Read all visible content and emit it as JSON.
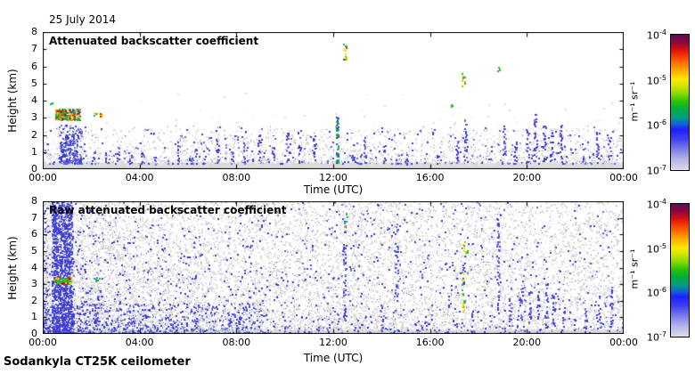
{
  "meta": {
    "date_label": "25 July 2014",
    "footer": "Sodankyla CT25K ceilometer"
  },
  "chart_data": [
    {
      "type": "scatter",
      "title": "Attenuated backscatter coefficient",
      "xlabel": "Time (UTC)",
      "ylabel": "Height (km)",
      "xlim_hours": [
        0,
        24
      ],
      "ylim_km": [
        0,
        8
      ],
      "grid": false,
      "xticks": {
        "positions": [
          0,
          4,
          8,
          12,
          16,
          20,
          24
        ],
        "labels": [
          "00:00",
          "04:00",
          "08:00",
          "12:00",
          "16:00",
          "20:00",
          "00:00"
        ]
      },
      "yticks": {
        "positions": [
          0,
          1,
          2,
          3,
          4,
          5,
          6,
          7,
          8
        ],
        "labels": [
          "0",
          "1",
          "2",
          "3",
          "4",
          "5",
          "6",
          "7",
          "8"
        ]
      },
      "colorbar": {
        "base": "10",
        "exponents": [
          "-4",
          "-5",
          "-6",
          "-7"
        ],
        "units": "m⁻¹ sr⁻¹",
        "min": "1e-7",
        "max": "1e-4",
        "scale": "log"
      },
      "features": [
        {
          "type": "surface_band",
          "label": "surface-return-band",
          "h_top": 0.45,
          "jitter": 0.3,
          "color": "#dcdcdc"
        },
        {
          "type": "speckle",
          "label": "weak-aerosol-gray",
          "t": [
            0,
            24
          ],
          "h": [
            0.3,
            2.35
          ],
          "count": 2400,
          "h_bias": 2.1,
          "t_bias": 1,
          "colors": [
            "#d8d8d8",
            "#d8d8d8",
            "#e3e3e3"
          ],
          "sizes": [
            1,
            2
          ]
        },
        {
          "type": "speckle",
          "label": "sparse-gray-high",
          "t": [
            0,
            24
          ],
          "h": [
            2.3,
            4.5
          ],
          "count": 120,
          "h_bias": 2.6,
          "t_bias": 1,
          "colors": [
            "#dedede"
          ],
          "sizes": [
            1,
            2
          ]
        },
        {
          "type": "speckle",
          "label": "aerosol-blue",
          "t": [
            0,
            24
          ],
          "h": [
            0.35,
            2.55
          ],
          "count": 620,
          "h_bias": 1.9,
          "t_bias": 1,
          "colors": [
            "#3a3ad6",
            "#3a3ad6",
            "#6b6be0"
          ],
          "sizes": [
            1,
            2
          ]
        },
        {
          "type": "speckle",
          "label": "aerosol-blue-early",
          "t": [
            0.65,
            1.6
          ],
          "h": [
            0.35,
            2.6
          ],
          "count": 240,
          "h_bias": 1.4,
          "t_bias": 1,
          "colors": [
            "#3a3ad6",
            "#6b6be0"
          ],
          "sizes": [
            1,
            2
          ]
        },
        {
          "type": "streaks",
          "label": "boundary-layer-aerosol-streaks",
          "density": 9,
          "width": 2,
          "colors": [
            "#3a3ad6",
            "#3a3ad6",
            "#6b6be0"
          ],
          "items": [
            [
              0.75,
              0.4,
              2.0
            ],
            [
              0.9,
              0.5,
              2.4
            ],
            [
              1.05,
              0.4,
              1.9
            ],
            [
              1.25,
              0.5,
              2.2
            ],
            [
              1.45,
              2.7,
              3.6
            ],
            [
              2.1,
              0.5,
              1.2
            ],
            [
              2.6,
              0.4,
              1.0
            ],
            [
              3.1,
              0.4,
              1.4
            ],
            [
              3.6,
              0.3,
              0.9
            ],
            [
              4.1,
              0.3,
              1.0
            ],
            [
              4.6,
              0.3,
              0.8
            ],
            [
              5.6,
              0.4,
              1.6
            ],
            [
              6.3,
              0.4,
              1.2
            ],
            [
              7.2,
              0.4,
              2.0
            ],
            [
              7.8,
              0.3,
              1.1
            ],
            [
              8.3,
              0.4,
              1.6
            ],
            [
              8.9,
              0.5,
              2.1
            ],
            [
              9.5,
              0.4,
              1.5
            ],
            [
              10.1,
              0.4,
              2.2
            ],
            [
              10.6,
              0.4,
              1.5
            ],
            [
              11.2,
              0.4,
              1.8
            ],
            [
              12.8,
              0.4,
              1.6
            ],
            [
              13.3,
              0.4,
              2.1
            ],
            [
              14.1,
              0.4,
              1.5
            ],
            [
              15.0,
              0.3,
              0.9
            ],
            [
              17.1,
              0.4,
              1.7
            ],
            [
              17.45,
              0.4,
              3.0
            ],
            [
              19.05,
              0.5,
              2.6
            ],
            [
              19.5,
              0.4,
              1.7
            ],
            [
              20.0,
              0.4,
              2.4
            ],
            [
              20.3,
              0.5,
              3.3
            ],
            [
              20.7,
              0.4,
              2.6
            ],
            [
              21.0,
              0.5,
              2.2
            ],
            [
              21.4,
              0.4,
              2.7
            ],
            [
              22.3,
              0.4,
              1.5
            ],
            [
              22.9,
              0.5,
              2.3
            ],
            [
              23.4,
              0.4,
              1.9
            ]
          ]
        },
        {
          "type": "cluster",
          "label": "cloud-layer-3km-0030-0130",
          "t": [
            0.5,
            1.5
          ],
          "h": [
            2.9,
            3.55
          ],
          "count": 220,
          "colors": [
            "#1fb832",
            "#1fb832",
            "#3a3ad6",
            "#f2d900",
            "#e81400",
            "#ff8c00",
            "#00a884"
          ],
          "sizes": [
            2,
            2
          ]
        },
        {
          "type": "cluster",
          "label": "cloud-red-core",
          "t": [
            0.6,
            0.95
          ],
          "h": [
            3.15,
            3.45
          ],
          "count": 55,
          "colors": [
            "#e81400",
            "#b00030",
            "#ff8c00",
            "#1fb832"
          ],
          "sizes": [
            2,
            2
          ]
        },
        {
          "type": "cluster",
          "label": "cloud-fragment-0210",
          "t": [
            2.1,
            2.45
          ],
          "h": [
            3.1,
            3.3
          ],
          "count": 12,
          "colors": [
            "#1fb832",
            "#e81400",
            "#f2d900"
          ],
          "sizes": [
            2,
            2
          ]
        },
        {
          "type": "cluster",
          "label": "green-dots-0020-39km",
          "t": [
            0.28,
            0.45
          ],
          "h": [
            3.75,
            3.95
          ],
          "count": 5,
          "colors": [
            "#1fb832",
            "#00a884"
          ],
          "sizes": [
            2,
            2
          ]
        },
        {
          "type": "streaks",
          "label": "precip-column-1210",
          "density": 18,
          "width": 2,
          "colors": [
            "#00a884",
            "#1fb832",
            "#3a3ad6"
          ],
          "items": [
            [
              12.15,
              0.4,
              3.25
            ]
          ]
        },
        {
          "type": "streaks",
          "label": "high-cloud-1230-7km",
          "density": 16,
          "width": 2,
          "colors": [
            "#1fb832",
            "#f2d900",
            "#ff8c00",
            "#e81400"
          ],
          "items": [
            [
              12.45,
              6.4,
              7.35
            ]
          ]
        },
        {
          "type": "streaks",
          "label": "cloud-1720-5km",
          "density": 14,
          "width": 2,
          "colors": [
            "#f2d900",
            "#1fb832",
            "#ff8c00"
          ],
          "items": [
            [
              17.35,
              4.85,
              5.65
            ]
          ]
        },
        {
          "type": "streaks",
          "label": "cloud-1850-6km",
          "density": 16,
          "width": 2,
          "colors": [
            "#00a884",
            "#1fb832"
          ],
          "items": [
            [
              18.8,
              5.7,
              6.0
            ]
          ]
        },
        {
          "type": "cluster",
          "label": "green-dot-1650",
          "t": [
            16.8,
            16.95
          ],
          "h": [
            3.65,
            3.8
          ],
          "count": 3,
          "colors": [
            "#1fb832"
          ],
          "sizes": [
            2,
            2
          ]
        }
      ]
    },
    {
      "type": "scatter",
      "title": "Raw attenuated backscatter coefficient",
      "xlabel": "Time (UTC)",
      "ylabel": "Height (km)",
      "xlim_hours": [
        0,
        24
      ],
      "ylim_km": [
        0,
        8
      ],
      "grid": false,
      "xticks": {
        "positions": [
          0,
          4,
          8,
          12,
          16,
          20,
          24
        ],
        "labels": [
          "00:00",
          "04:00",
          "08:00",
          "12:00",
          "16:00",
          "20:00",
          "00:00"
        ]
      },
      "yticks": {
        "positions": [
          0,
          1,
          2,
          3,
          4,
          5,
          6,
          7,
          8
        ],
        "labels": [
          "0",
          "1",
          "2",
          "3",
          "4",
          "5",
          "6",
          "7",
          "8"
        ]
      },
      "colorbar": {
        "base": "10",
        "exponents": [
          "-4",
          "-5",
          "-6",
          "-7"
        ],
        "units": "m⁻¹ sr⁻¹",
        "min": "1e-7",
        "max": "1e-4",
        "scale": "log"
      },
      "features": [
        {
          "type": "surface_band",
          "label": "surface-return-band",
          "h_top": 0.3,
          "jitter": 0.35,
          "color": "#d9d9d9"
        },
        {
          "type": "speckle",
          "label": "raw-noise-gray",
          "t": [
            0,
            24
          ],
          "h": [
            0,
            8
          ],
          "count": 12500,
          "h_bias": 1.55,
          "t_bias": 1.35,
          "colors": [
            "#d8d8d8",
            "#d8d8d8",
            "#e0e0e0"
          ],
          "sizes": [
            1,
            2
          ]
        },
        {
          "type": "speckle",
          "label": "raw-noise-gray-uniform",
          "t": [
            0,
            24
          ],
          "h": [
            0,
            8
          ],
          "count": 1300,
          "h_bias": 1,
          "t_bias": 1,
          "colors": [
            "#e0e0e0"
          ],
          "sizes": [
            1,
            2
          ]
        },
        {
          "type": "speckle",
          "label": "raw-noise-blue",
          "t": [
            0,
            24
          ],
          "h": [
            0,
            8
          ],
          "count": 2500,
          "h_bias": 1.8,
          "t_bias": 1.5,
          "colors": [
            "#3a3ad6",
            "#3a3ad6",
            "#6b6be0"
          ],
          "sizes": [
            1,
            2
          ]
        },
        {
          "type": "speckle",
          "label": "blue-low-left",
          "t": [
            0,
            9
          ],
          "h": [
            0,
            1.9
          ],
          "count": 650,
          "h_bias": 1.3,
          "t_bias": 1,
          "colors": [
            "#3a3ad6",
            "#6b6be0"
          ],
          "sizes": [
            1,
            2
          ]
        },
        {
          "type": "speckle",
          "label": "dense-noise-column-0030-0110",
          "t": [
            0.35,
            1.2
          ],
          "h": [
            0,
            8
          ],
          "count": 1500,
          "h_bias": 1,
          "t_bias": 1,
          "colors": [
            "#3a3ad6",
            "#3a3ad6",
            "#5050dc"
          ],
          "sizes": [
            1,
            2
          ]
        },
        {
          "type": "cluster",
          "label": "cloud-layer-3km",
          "t": [
            0.45,
            1.15
          ],
          "h": [
            3.05,
            3.45
          ],
          "count": 80,
          "colors": [
            "#e81400",
            "#1fb832",
            "#f2d900",
            "#ff8c00",
            "#b00030",
            "#1fb832"
          ],
          "sizes": [
            2,
            2
          ]
        },
        {
          "type": "hline",
          "label": "cloud-green-line",
          "t": [
            0.5,
            1.15
          ],
          "h": 3.22,
          "color": "#1fb832",
          "thickness": 2
        },
        {
          "type": "cluster",
          "label": "cloud-fragment-0210",
          "t": [
            2.05,
            2.35
          ],
          "h": [
            3.2,
            3.4
          ],
          "count": 6,
          "colors": [
            "#1fb832",
            "#00a884"
          ],
          "sizes": [
            2,
            2
          ]
        },
        {
          "type": "streaks",
          "label": "evening-aerosol-streaks",
          "density": 7,
          "width": 2,
          "colors": [
            "#3a3ad6",
            "#3a3ad6",
            "#6b6be0"
          ],
          "items": [
            [
              2.2,
              0.2,
              2.4
            ],
            [
              12.45,
              0.8,
              7.0
            ],
            [
              14.0,
              0.2,
              2.2
            ],
            [
              14.6,
              1.8,
              6.6
            ],
            [
              18.8,
              1.0,
              7.0
            ],
            [
              19.3,
              0.5,
              3.2
            ],
            [
              19.75,
              0.5,
              2.9
            ],
            [
              20.1,
              0.4,
              3.0
            ],
            [
              20.45,
              0.5,
              2.6
            ],
            [
              20.8,
              0.4,
              3.1
            ],
            [
              21.1,
              0.5,
              2.3
            ],
            [
              21.5,
              0.4,
              2.1
            ],
            [
              22.4,
              0.3,
              1.6
            ],
            [
              23.0,
              0.4,
              2.3
            ],
            [
              23.5,
              0.5,
              2.9
            ]
          ]
        },
        {
          "type": "streaks",
          "label": "mixed-column-1720",
          "density": 6,
          "width": 2,
          "colors": [
            "#3a3ad6",
            "#1fb832",
            "#f2d900"
          ],
          "items": [
            [
              17.35,
              0.6,
              5.7
            ]
          ]
        },
        {
          "type": "cluster",
          "label": "cloud-bits-1720-5km",
          "t": [
            17.3,
            17.55
          ],
          "h": [
            4.8,
            5.6
          ],
          "count": 8,
          "colors": [
            "#1fb832",
            "#f2d900",
            "#ff8c00"
          ],
          "sizes": [
            2,
            2
          ]
        },
        {
          "type": "cluster",
          "label": "green-dots-1230-high",
          "t": [
            12.4,
            12.55
          ],
          "h": [
            6.3,
            7.4
          ],
          "count": 6,
          "colors": [
            "#1fb832",
            "#00a884",
            "#ff8c00"
          ],
          "sizes": [
            2,
            2
          ]
        },
        {
          "type": "hline",
          "label": "near-surface-blue-line",
          "t": [
            0,
            5.2
          ],
          "h": 0.07,
          "color": "#4646d8",
          "thickness": 2
        }
      ]
    }
  ]
}
